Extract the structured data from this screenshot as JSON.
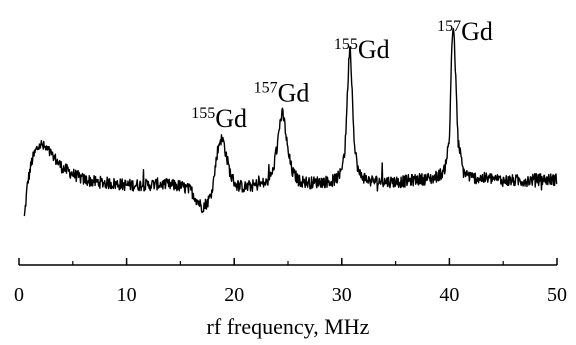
{
  "chart_data": {
    "type": "line",
    "title": "",
    "xlabel": "rf frequency, MHz",
    "ylabel": "",
    "xlim": [
      0,
      50
    ],
    "x_ticks": [
      0,
      10,
      20,
      30,
      40,
      50
    ],
    "x_tick_labels": [
      "0",
      "10",
      "20",
      "30",
      "40",
      "50"
    ],
    "y_axis_shown": false,
    "grid": false,
    "legend": "none",
    "line_color": "#000000",
    "series": [
      {
        "x": [
          0.5,
          0.8,
          1.2,
          1.6,
          2.0,
          2.5,
          3.0,
          3.5,
          4.0,
          5.0,
          6.0,
          7.0,
          8.0,
          9.0,
          10.0,
          11.0,
          12.0,
          13.0,
          14.0,
          15.0,
          16.0,
          16.5,
          17.0,
          17.5,
          17.8,
          18.1,
          18.4,
          18.7,
          19.0,
          19.3,
          19.7,
          20.2,
          21.0,
          22.0,
          23.0,
          23.6,
          24.0,
          24.3,
          24.5,
          24.7,
          25.0,
          25.4,
          26.0,
          27.0,
          28.0,
          29.0,
          29.8,
          30.3,
          30.6,
          30.75,
          30.9,
          31.2,
          31.6,
          32.5,
          34.0,
          35.5,
          37.0,
          38.5,
          39.5,
          40.0,
          40.2,
          40.35,
          40.5,
          40.8,
          41.3,
          42.0,
          43.0,
          44.0,
          45.0,
          46.0,
          47.0,
          48.0,
          49.0,
          50.0
        ],
        "values": [
          0.0,
          0.32,
          0.52,
          0.62,
          0.67,
          0.63,
          0.58,
          0.52,
          0.46,
          0.4,
          0.35,
          0.33,
          0.32,
          0.31,
          0.3,
          0.3,
          0.3,
          0.31,
          0.3,
          0.29,
          0.25,
          0.17,
          0.1,
          0.14,
          0.2,
          0.35,
          0.58,
          0.72,
          0.7,
          0.55,
          0.38,
          0.3,
          0.28,
          0.3,
          0.32,
          0.42,
          0.66,
          0.9,
          0.95,
          0.85,
          0.6,
          0.42,
          0.34,
          0.32,
          0.33,
          0.33,
          0.38,
          0.62,
          1.3,
          1.62,
          1.3,
          0.62,
          0.4,
          0.34,
          0.33,
          0.33,
          0.35,
          0.36,
          0.42,
          0.7,
          1.5,
          1.78,
          1.5,
          0.7,
          0.42,
          0.37,
          0.36,
          0.36,
          0.34,
          0.34,
          0.34,
          0.35,
          0.35,
          0.35
        ]
      }
    ],
    "annotations": [
      {
        "mass": "155",
        "element": "Gd",
        "x": 18.7
      },
      {
        "mass": "157",
        "element": "Gd",
        "x": 24.5
      },
      {
        "mass": "155",
        "element": "Gd",
        "x": 30.75
      },
      {
        "mass": "157",
        "element": "Gd",
        "x": 40.35
      }
    ]
  }
}
